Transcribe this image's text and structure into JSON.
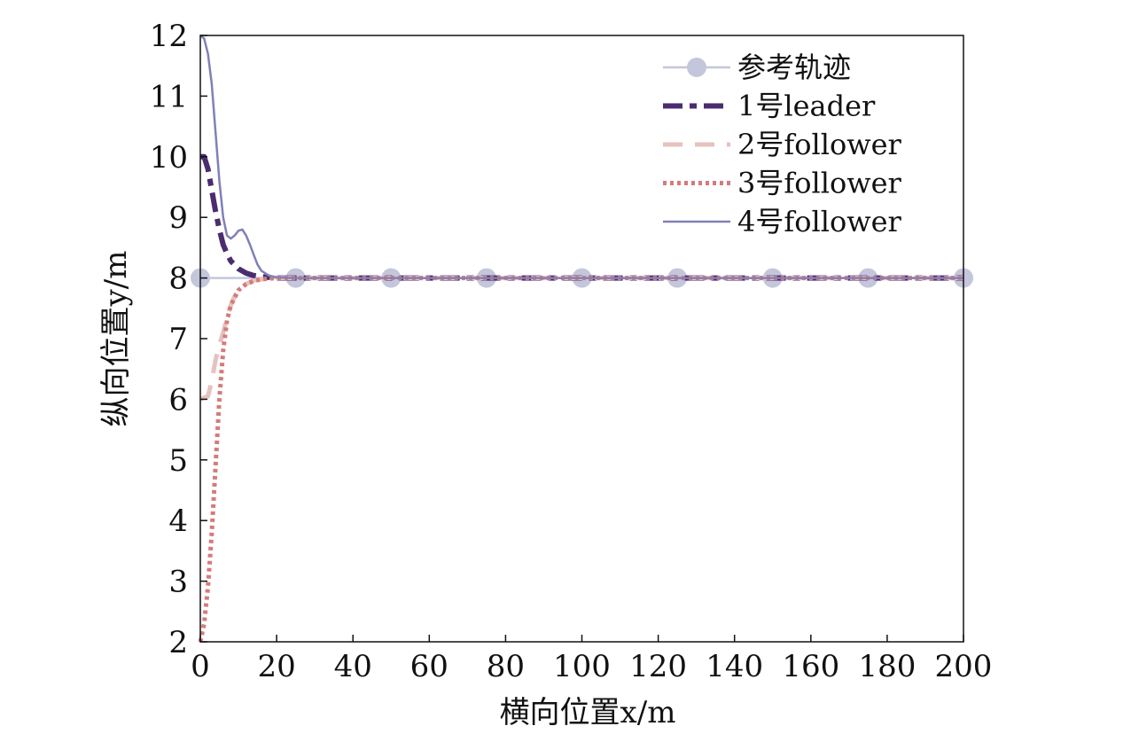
{
  "chart_data": {
    "type": "line",
    "xlabel": "横向位置x/m",
    "ylabel": "纵向位置y/m",
    "xlim": [
      0,
      200
    ],
    "ylim": [
      2,
      12
    ],
    "xticks": [
      0,
      20,
      40,
      60,
      80,
      100,
      120,
      140,
      160,
      180,
      200
    ],
    "yticks": [
      2,
      3,
      4,
      5,
      6,
      7,
      8,
      9,
      10,
      11,
      12
    ],
    "grid": false,
    "legend_position": "top-right",
    "series": [
      {
        "name": "参考轨迹",
        "color": "#c4c6dc",
        "line_style": "solid",
        "marker": "circle",
        "x": [
          0,
          25,
          50,
          75,
          100,
          125,
          150,
          175,
          200
        ],
        "y": [
          8,
          8,
          8,
          8,
          8,
          8,
          8,
          8,
          8
        ]
      },
      {
        "name": "1号leader",
        "color": "#4a2d6e",
        "line_style": "dashdot",
        "x": [
          0,
          1,
          2,
          3,
          4,
          5,
          6,
          7,
          8,
          10,
          12,
          14,
          16,
          18,
          20,
          25,
          200
        ],
        "y": [
          10,
          10,
          9.8,
          9.45,
          9.1,
          8.8,
          8.55,
          8.4,
          8.28,
          8.15,
          8.08,
          8.04,
          8.02,
          8.01,
          8.0,
          8.0,
          8.0
        ]
      },
      {
        "name": "2号follower",
        "color": "#e6c2bf",
        "line_style": "dashed",
        "x": [
          0,
          2,
          3,
          4,
          5,
          6,
          7,
          8,
          9,
          10,
          12,
          14,
          16,
          18,
          20,
          25,
          200
        ],
        "y": [
          6,
          6.05,
          6.3,
          6.65,
          6.9,
          7.1,
          7.35,
          7.55,
          7.7,
          7.8,
          7.9,
          7.96,
          7.98,
          7.99,
          8.0,
          8.0,
          8.0
        ]
      },
      {
        "name": "3号follower",
        "color": "#d47b7b",
        "line_style": "dotted",
        "x": [
          0,
          1,
          2,
          3,
          4,
          5,
          6,
          7,
          8,
          10,
          12,
          14,
          16,
          18,
          20,
          25,
          200
        ],
        "y": [
          2,
          2.3,
          2.9,
          3.8,
          4.9,
          6.0,
          6.8,
          7.3,
          7.55,
          7.8,
          7.9,
          7.95,
          7.98,
          7.99,
          8.0,
          8.0,
          8.0
        ]
      },
      {
        "name": "4号follower",
        "color": "#8080b8",
        "line_style": "solid",
        "x": [
          0,
          1,
          2,
          3,
          4,
          5,
          6,
          7,
          8,
          9,
          10,
          11,
          12,
          13,
          14,
          15,
          16,
          18,
          20,
          25,
          200
        ],
        "y": [
          12,
          11.95,
          11.7,
          11.2,
          10.4,
          9.6,
          9.0,
          8.7,
          8.65,
          8.7,
          8.78,
          8.8,
          8.7,
          8.55,
          8.38,
          8.22,
          8.12,
          8.04,
          8.01,
          8.0,
          8.0
        ]
      }
    ]
  }
}
